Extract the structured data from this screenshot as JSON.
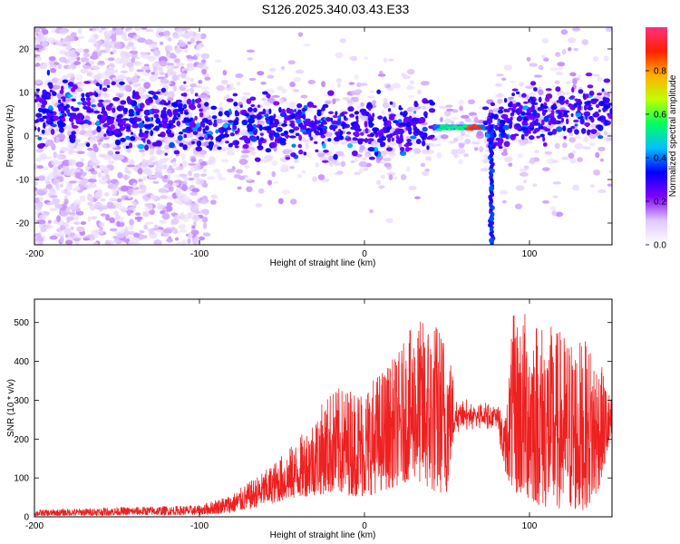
{
  "title": "S126.2025.340.03.43.E33",
  "colors": {
    "snr_line": "#ee2020",
    "background": "#ffffff"
  },
  "chart_data": [
    {
      "type": "heatmap",
      "name": "spectrogram",
      "xlabel": "Height of straight line (km)",
      "ylabel": "Frequency (Hz)",
      "xlim": [
        -200,
        150
      ],
      "ylim": [
        -25,
        25
      ],
      "xticks": [
        -200,
        -100,
        0,
        100
      ],
      "yticks": [
        -20,
        -10,
        0,
        10,
        20
      ],
      "colorbar": {
        "label": "Normalized spectral amplitude",
        "range": [
          0,
          1
        ],
        "ticks": [
          0.0,
          0.2,
          0.4,
          0.6,
          0.8
        ],
        "tick_labels": [
          "0.0",
          "0.2",
          "0.4",
          "0.6",
          "0.8"
        ],
        "colors": [
          "#ffffff",
          "#e0c8ff",
          "#8000ff",
          "#0000ff",
          "#00c0ff",
          "#00ff60",
          "#c0ff00",
          "#ffb000",
          "#ff2000",
          "#ff3080"
        ]
      },
      "features": [
        {
          "desc": "main band",
          "x_range": [
            -200,
            150
          ],
          "freq_center": 2,
          "freq_spread": 4
        },
        {
          "desc": "narrow high-amplitude line",
          "x_range": [
            43,
            72
          ],
          "freq": 2,
          "amplitude": 0.9
        },
        {
          "desc": "low-frequency dip",
          "x_center": 77,
          "freq_min": -25
        }
      ]
    },
    {
      "type": "line",
      "name": "snr",
      "xlabel": "Height of straight line (km)",
      "ylabel": "SNR (10 * v/v)",
      "xlim": [
        -200,
        150
      ],
      "ylim": [
        0,
        560
      ],
      "xticks": [
        -200,
        -100,
        0,
        100
      ],
      "yticks": [
        0,
        100,
        200,
        300,
        400,
        500
      ],
      "envelope": {
        "x": [
          -200,
          -150,
          -100,
          -80,
          -60,
          -40,
          -20,
          0,
          20,
          30,
          40,
          50,
          55,
          60,
          70,
          80,
          85,
          90,
          100,
          110,
          120,
          130,
          140,
          150
        ],
        "low": [
          2,
          4,
          5,
          10,
          30,
          50,
          60,
          50,
          80,
          100,
          60,
          60,
          230,
          230,
          230,
          230,
          120,
          60,
          40,
          20,
          20,
          10,
          40,
          200
        ],
        "high": [
          18,
          25,
          30,
          60,
          120,
          200,
          330,
          340,
          420,
          500,
          520,
          480,
          330,
          300,
          300,
          300,
          250,
          520,
          540,
          500,
          480,
          460,
          440,
          300
        ]
      }
    }
  ]
}
